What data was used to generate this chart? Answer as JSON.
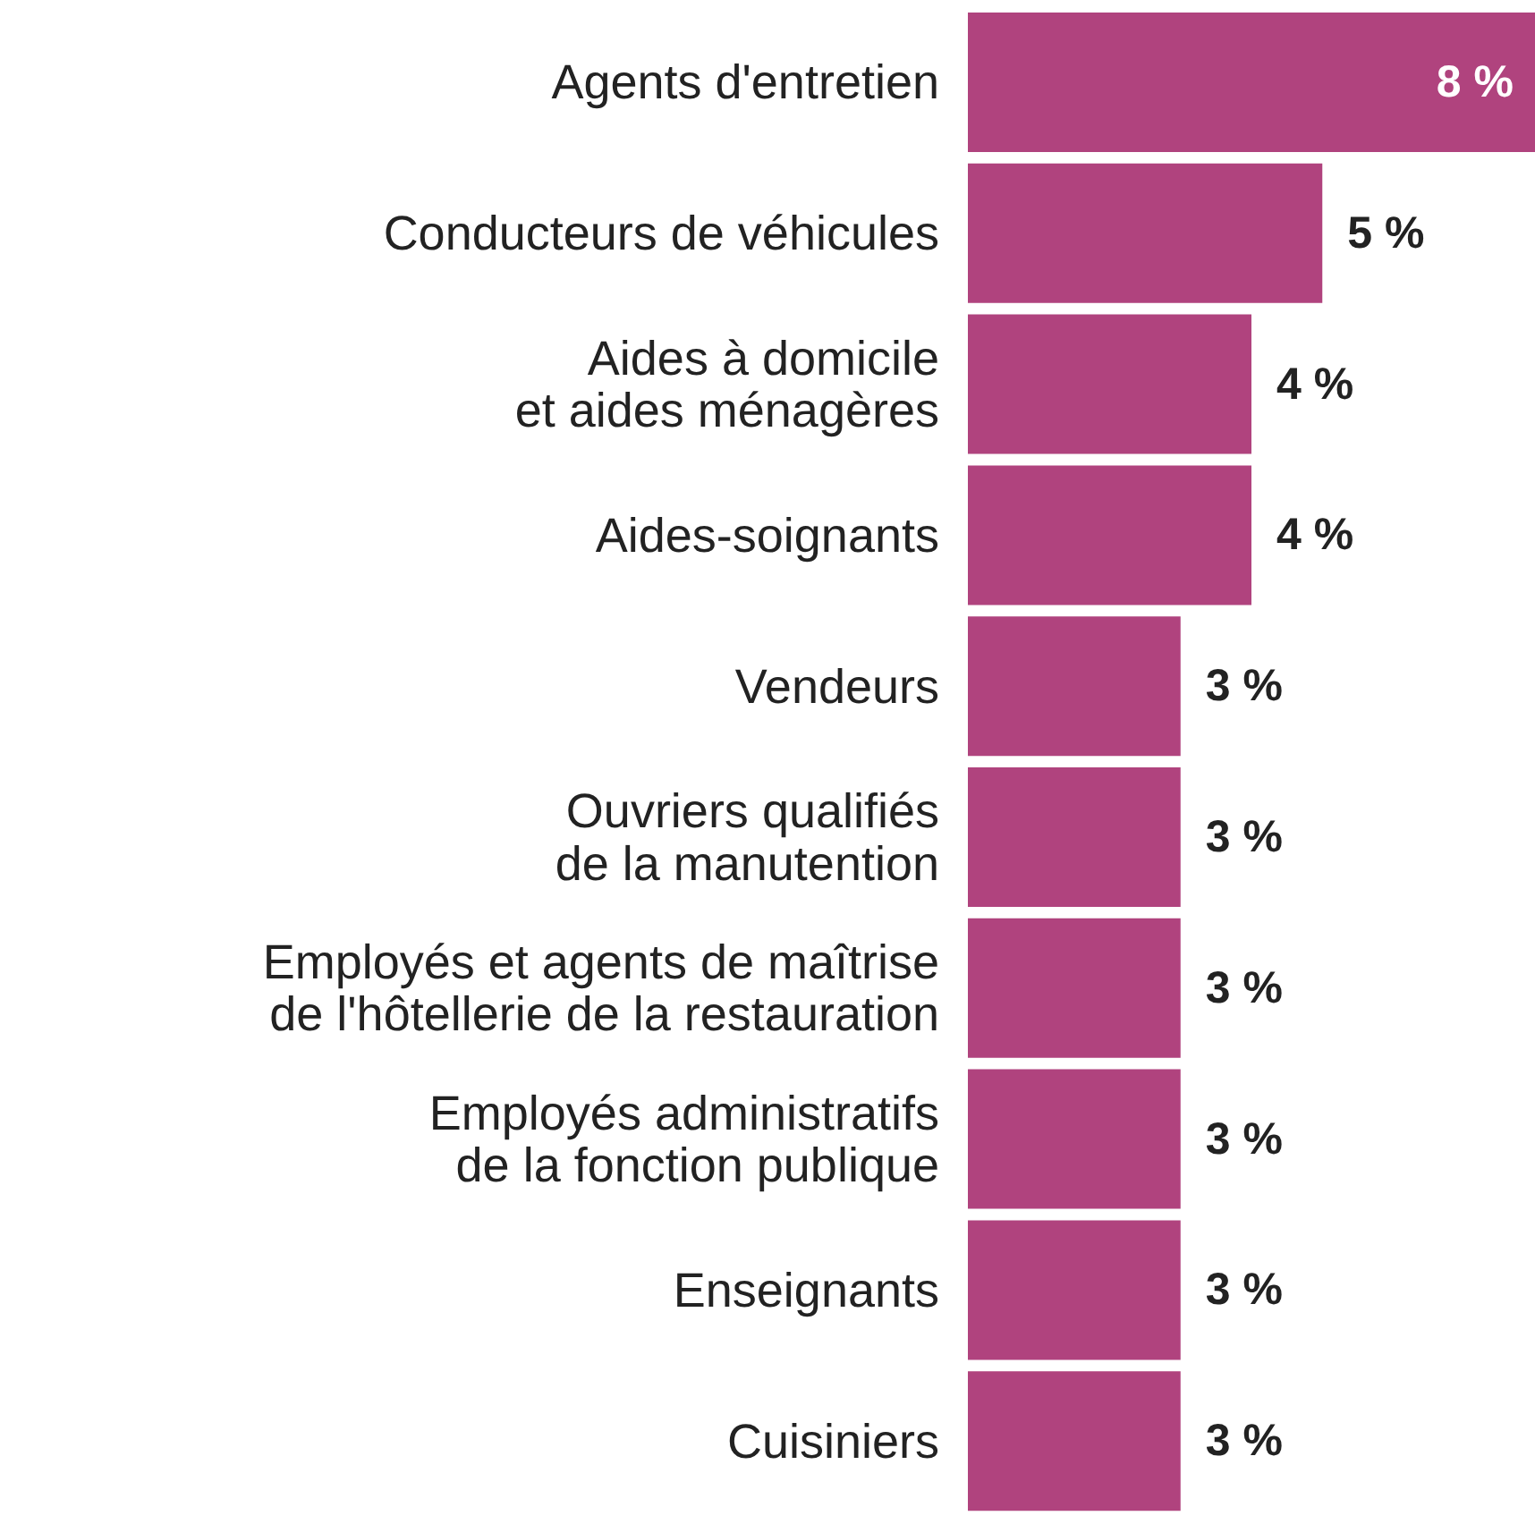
{
  "chart_data": {
    "type": "bar",
    "orientation": "horizontal",
    "categories": [
      "Agents d'entretien",
      "Conducteurs de véhicules",
      "Aides à domicile et aides ménagères",
      "Aides-soignants",
      "Vendeurs",
      "Ouvriers qualifiés de la manutention",
      "Employés et agents de maîtrise de l'hôtellerie de la restauration",
      "Employés administratifs de la fonction publique",
      "Enseignants",
      "Cuisiniers"
    ],
    "values": [
      8,
      5,
      4,
      4,
      3,
      3,
      3,
      3,
      3,
      3
    ],
    "value_labels": [
      "8 %",
      "5 %",
      "4 %",
      "4 %",
      "3 %",
      "3 %",
      "3 %",
      "3 %",
      "3 %",
      "3 %"
    ],
    "color": "#b0437e"
  }
}
